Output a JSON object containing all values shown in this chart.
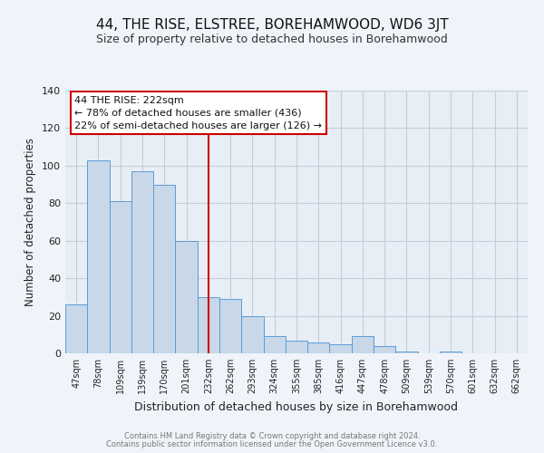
{
  "title": "44, THE RISE, ELSTREE, BOREHAMWOOD, WD6 3JT",
  "subtitle": "Size of property relative to detached houses in Borehamwood",
  "xlabel": "Distribution of detached houses by size in Borehamwood",
  "ylabel": "Number of detached properties",
  "bar_labels": [
    "47sqm",
    "78sqm",
    "109sqm",
    "139sqm",
    "170sqm",
    "201sqm",
    "232sqm",
    "262sqm",
    "293sqm",
    "324sqm",
    "355sqm",
    "385sqm",
    "416sqm",
    "447sqm",
    "478sqm",
    "509sqm",
    "539sqm",
    "570sqm",
    "601sqm",
    "632sqm",
    "662sqm"
  ],
  "bar_values": [
    26,
    103,
    81,
    97,
    90,
    60,
    30,
    29,
    20,
    9,
    7,
    6,
    5,
    9,
    4,
    1,
    0,
    1,
    0,
    0,
    0
  ],
  "bar_color": "#c8d8e8",
  "bar_edge_color": "#5b9bd5",
  "vline_x": 6,
  "vline_color": "#cc0000",
  "annotation_text": "44 THE RISE: 222sqm\n← 78% of detached houses are smaller (436)\n22% of semi-detached houses are larger (126) →",
  "annotation_box_color": "#ffffff",
  "annotation_box_edge": "#cc0000",
  "footer_line1": "Contains HM Land Registry data © Crown copyright and database right 2024.",
  "footer_line2": "Contains public sector information licensed under the Open Government Licence v3.0.",
  "fig_bg_color": "#f0f4fa",
  "plot_bg_color": "#e8eef6",
  "grid_color": "#c5cdd8",
  "ylim": [
    0,
    140
  ],
  "title_fontsize": 11,
  "subtitle_fontsize": 9,
  "xlabel_fontsize": 9,
  "ylabel_fontsize": 8.5,
  "annotation_fontsize": 8,
  "footer_fontsize": 6
}
